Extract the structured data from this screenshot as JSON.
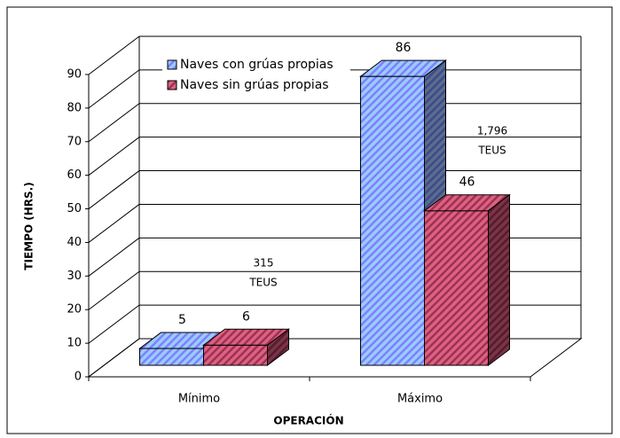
{
  "chart_data": {
    "type": "bar3d",
    "xlabel": "OPERACIÓN",
    "ylabel": "TIEMPO (HRS.)",
    "categories": [
      "Mínimo",
      "Máximo"
    ],
    "series": [
      {
        "name": "Naves con grúas propias",
        "color": "#9999ff",
        "values": [
          5,
          86
        ]
      },
      {
        "name": "Naves sin grúas propias",
        "color": "#cc3366",
        "values": [
          6,
          46
        ]
      }
    ],
    "annotations": [
      [
        "315",
        "TEUS"
      ],
      [
        "1,796",
        "TEUS"
      ]
    ],
    "ylim": [
      0,
      90
    ],
    "yticks": [
      0,
      10,
      20,
      30,
      40,
      50,
      60,
      70,
      80,
      90
    ],
    "grid": true
  }
}
